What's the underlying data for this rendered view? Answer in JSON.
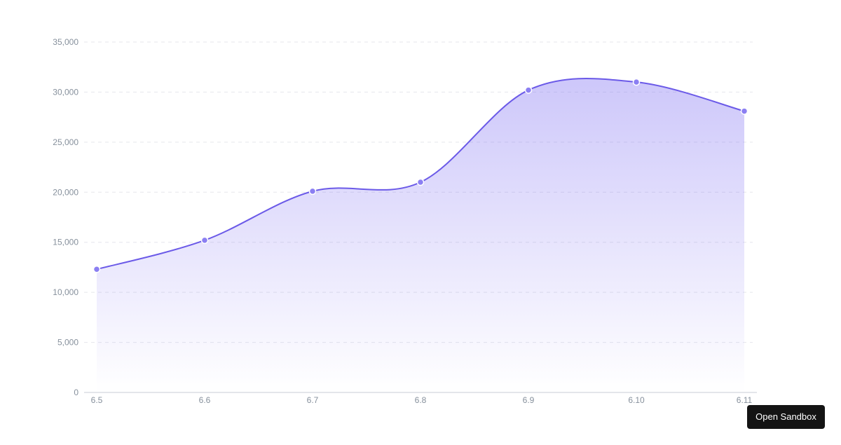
{
  "chart_data": {
    "type": "area",
    "x": [
      "6.5",
      "6.6",
      "6.7",
      "6.8",
      "6.9",
      "6.10",
      "6.11"
    ],
    "series": [
      {
        "values": [
          12300,
          15200,
          20100,
          21000,
          30200,
          31000,
          28100
        ]
      }
    ],
    "ylim": [
      0,
      35000
    ],
    "yticks": [
      "0",
      "5,000",
      "10,000",
      "15,000",
      "20,000",
      "25,000",
      "30,000",
      "35,000"
    ],
    "yticks_values": [
      0,
      5000,
      10000,
      15000,
      20000,
      25000,
      30000,
      35000
    ],
    "grid": "horizontal dashed",
    "smooth": true,
    "line_color": "#6b5ae8",
    "area_color": "#7c6cf2",
    "point_color": "#8b7ff2"
  },
  "sandbox": {
    "label": "Open Sandbox"
  }
}
